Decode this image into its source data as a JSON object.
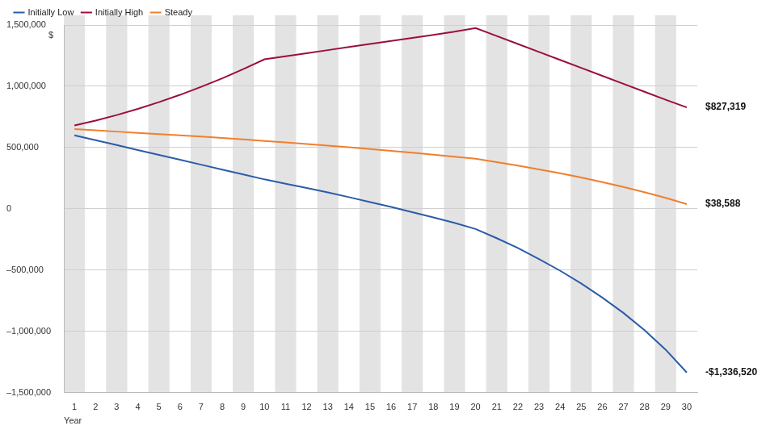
{
  "chart_data": {
    "type": "line",
    "xlabel": "Year",
    "ylabel": "$",
    "categories": [
      1,
      2,
      3,
      4,
      5,
      6,
      7,
      8,
      9,
      10,
      11,
      12,
      13,
      14,
      15,
      16,
      17,
      18,
      19,
      20,
      21,
      22,
      23,
      24,
      25,
      26,
      27,
      28,
      29,
      30
    ],
    "series": [
      {
        "name": "Initially Low",
        "color": "#2b5ca8",
        "line_style": "solid",
        "values": [
          600000,
          560000,
          520000,
          480000,
          440000,
          400000,
          360000,
          320000,
          280000,
          240000,
          205000,
          170000,
          133000,
          95000,
          55000,
          15000,
          -28000,
          -70000,
          -115000,
          -165000,
          -240000,
          -320000,
          -410000,
          -505000,
          -610000,
          -725000,
          -850000,
          -990000,
          -1150000,
          -1336520
        ]
      },
      {
        "name": "Initially High",
        "color": "#9b0e3e",
        "line_style": "solid",
        "values": [
          680000,
          720000,
          765000,
          815000,
          870000,
          930000,
          995000,
          1065000,
          1140000,
          1220000,
          1245000,
          1270000,
          1295000,
          1320000,
          1345000,
          1370000,
          1395000,
          1420000,
          1445000,
          1475000,
          1410000,
          1345000,
          1280000,
          1215000,
          1150000,
          1085000,
          1020000,
          955000,
          890000,
          827319
        ]
      },
      {
        "name": "Steady",
        "color": "#f07f2e",
        "line_style": "solid",
        "values": [
          650000,
          640000,
          630000,
          620000,
          610000,
          600000,
          590000,
          578000,
          566000,
          554000,
          542000,
          529000,
          516000,
          502000,
          488000,
          473000,
          458000,
          442000,
          425000,
          408000,
          380000,
          352000,
          322000,
          290000,
          255000,
          218000,
          178000,
          135000,
          89000,
          38588
        ]
      }
    ],
    "annotations": [
      {
        "text": "$827,319",
        "series": "Initially High"
      },
      {
        "text": "$38,588",
        "series": "Steady"
      },
      {
        "text": "-$1,336,520",
        "series": "Initially Low"
      }
    ],
    "ylim": [
      -1500000,
      1500000
    ],
    "yticks": [
      {
        "value": -1500000,
        "label": "–1,500,000"
      },
      {
        "value": -1000000,
        "label": "–1,000,000"
      },
      {
        "value": -500000,
        "label": "–500,000"
      },
      0,
      {
        "value": 500000,
        "label": "500,000"
      },
      {
        "value": 1000000,
        "label": "1,000,000"
      },
      {
        "value": 1500000,
        "label": "1,500,000"
      }
    ],
    "grid": true,
    "legend": "top-left"
  }
}
